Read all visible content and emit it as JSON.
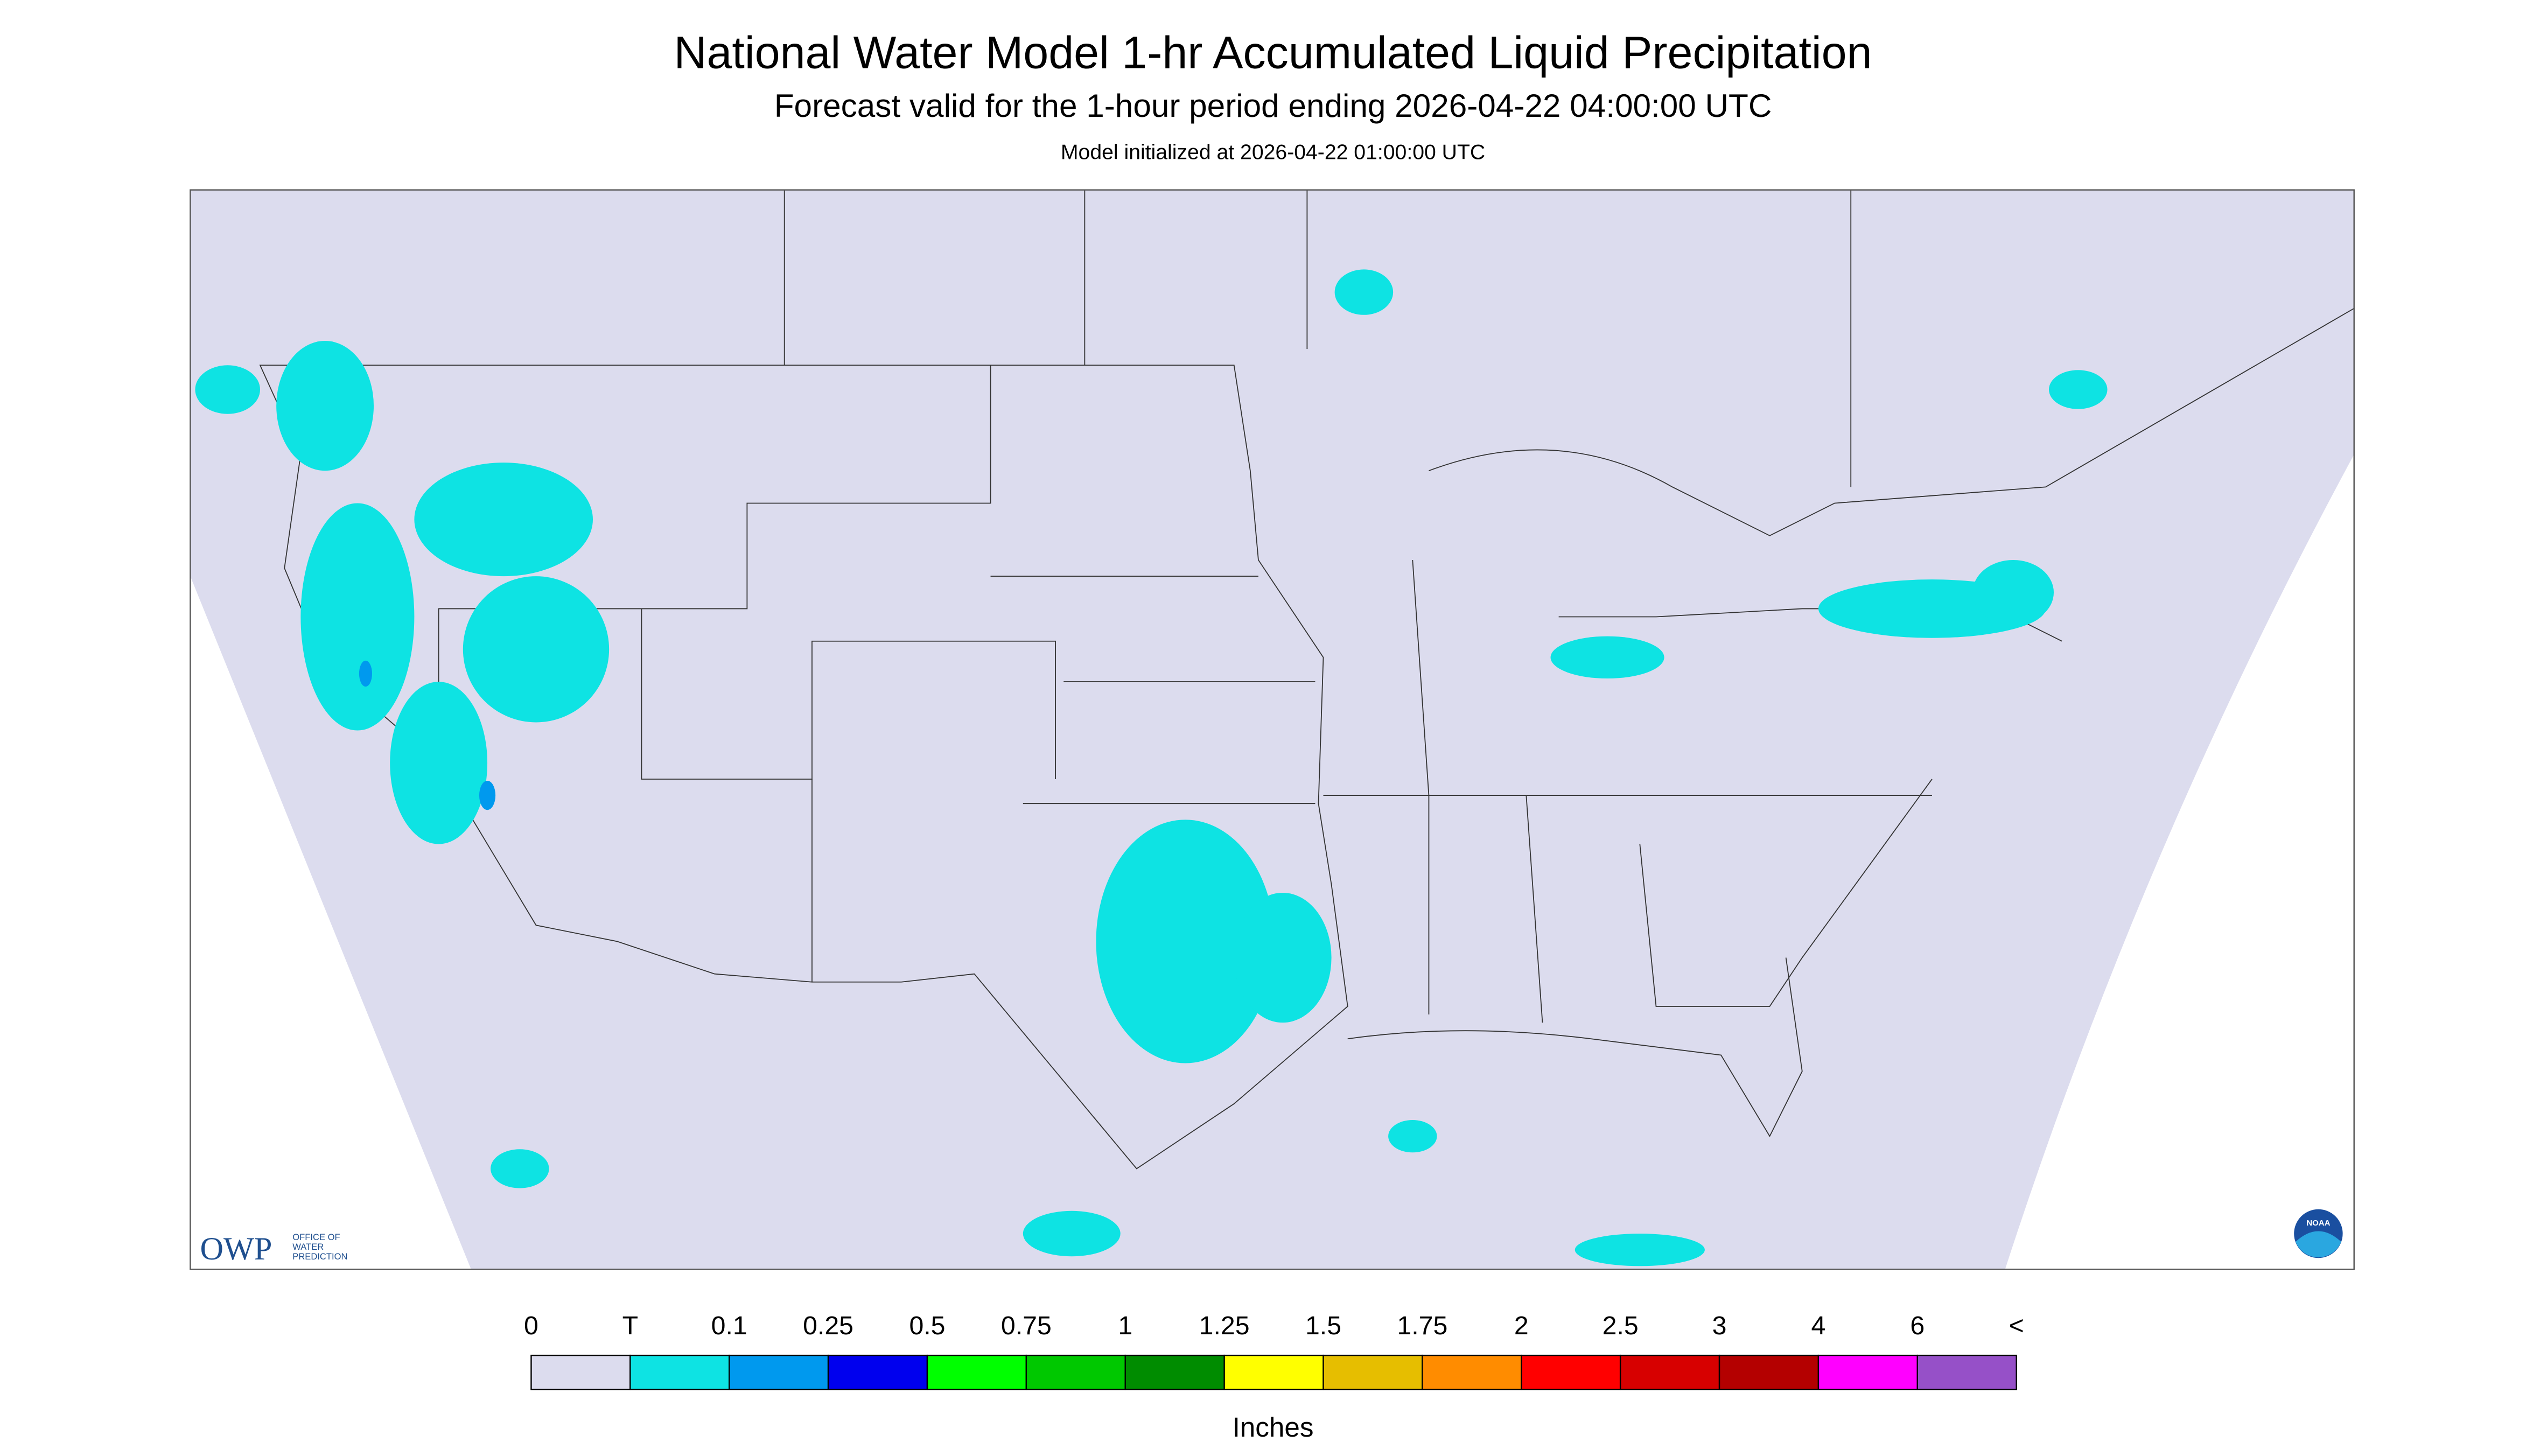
{
  "header": {
    "title": "National Water Model 1-hr Accumulated Liquid Precipitation",
    "subtitle": "Forecast valid for the 1-hour period ending 2026-04-22 04:00:00 UTC",
    "note": "Model initialized at 2026-04-22 01:00:00 UTC"
  },
  "logo": {
    "name": "OWP",
    "lines": [
      "OFFICE OF",
      "WATER",
      "PREDICTION"
    ],
    "badge": "NOAA"
  },
  "legend": {
    "labels": [
      "0",
      "T",
      "0.1",
      "0.25",
      "0.5",
      "0.75",
      "1",
      "1.25",
      "1.5",
      "1.75",
      "2",
      "2.5",
      "3",
      "4",
      "6",
      "<"
    ],
    "colors": [
      "#dcdcee",
      "#0ee3e3",
      "#0099ee",
      "#0000ee",
      "#00ff00",
      "#00c800",
      "#008c00",
      "#ffff00",
      "#e6be00",
      "#ff8c00",
      "#ff0000",
      "#d70000",
      "#b40000",
      "#ff00ff",
      "#9650c8"
    ],
    "units": "Inches"
  }
}
